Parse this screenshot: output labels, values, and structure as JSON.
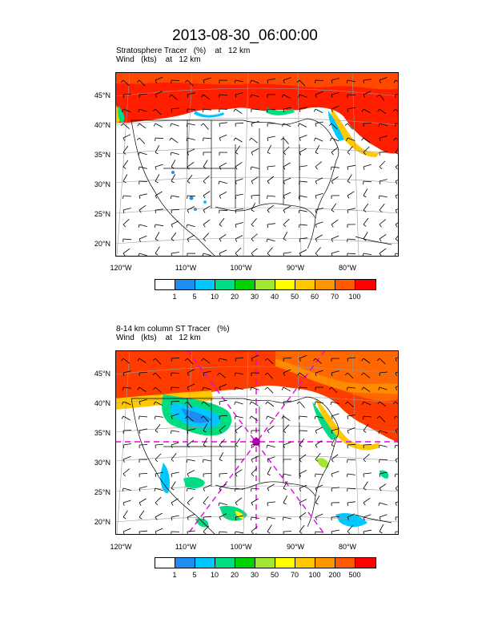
{
  "title": "2013-08-30_06:00:00",
  "panels": [
    {
      "subtitle_line1": "Stratosphere Tracer   (%)    at   12 km",
      "subtitle_line2": "Wind   (kts)    at   12 km",
      "lat_labels": [
        "45°N",
        "40°N",
        "35°N",
        "30°N",
        "25°N",
        "20°N"
      ],
      "lon_labels": [
        "120°W",
        "110°W",
        "100°W",
        "90°W",
        "80°W"
      ],
      "colorbar_labels": [
        "1",
        "5",
        "10",
        "20",
        "30",
        "40",
        "50",
        "60",
        "70",
        "100"
      ]
    },
    {
      "subtitle_line1": "8-14 km column ST Tracer   (%)",
      "subtitle_line2": "Wind   (kts)    at   12 km",
      "lat_labels": [
        "45°N",
        "40°N",
        "35°N",
        "30°N",
        "25°N",
        "20°N"
      ],
      "lon_labels": [
        "120°W",
        "110°W",
        "100°W",
        "90°W",
        "80°W"
      ],
      "colorbar_labels": [
        "1",
        "5",
        "10",
        "20",
        "30",
        "50",
        "70",
        "100",
        "200",
        "500"
      ]
    }
  ],
  "colorbar_colors": [
    "#ffffff",
    "#1e8cf0",
    "#00c8ff",
    "#00dc82",
    "#00d200",
    "#a0e632",
    "#ffff00",
    "#ffc800",
    "#ff9600",
    "#ff5a00",
    "#ff0000"
  ]
}
